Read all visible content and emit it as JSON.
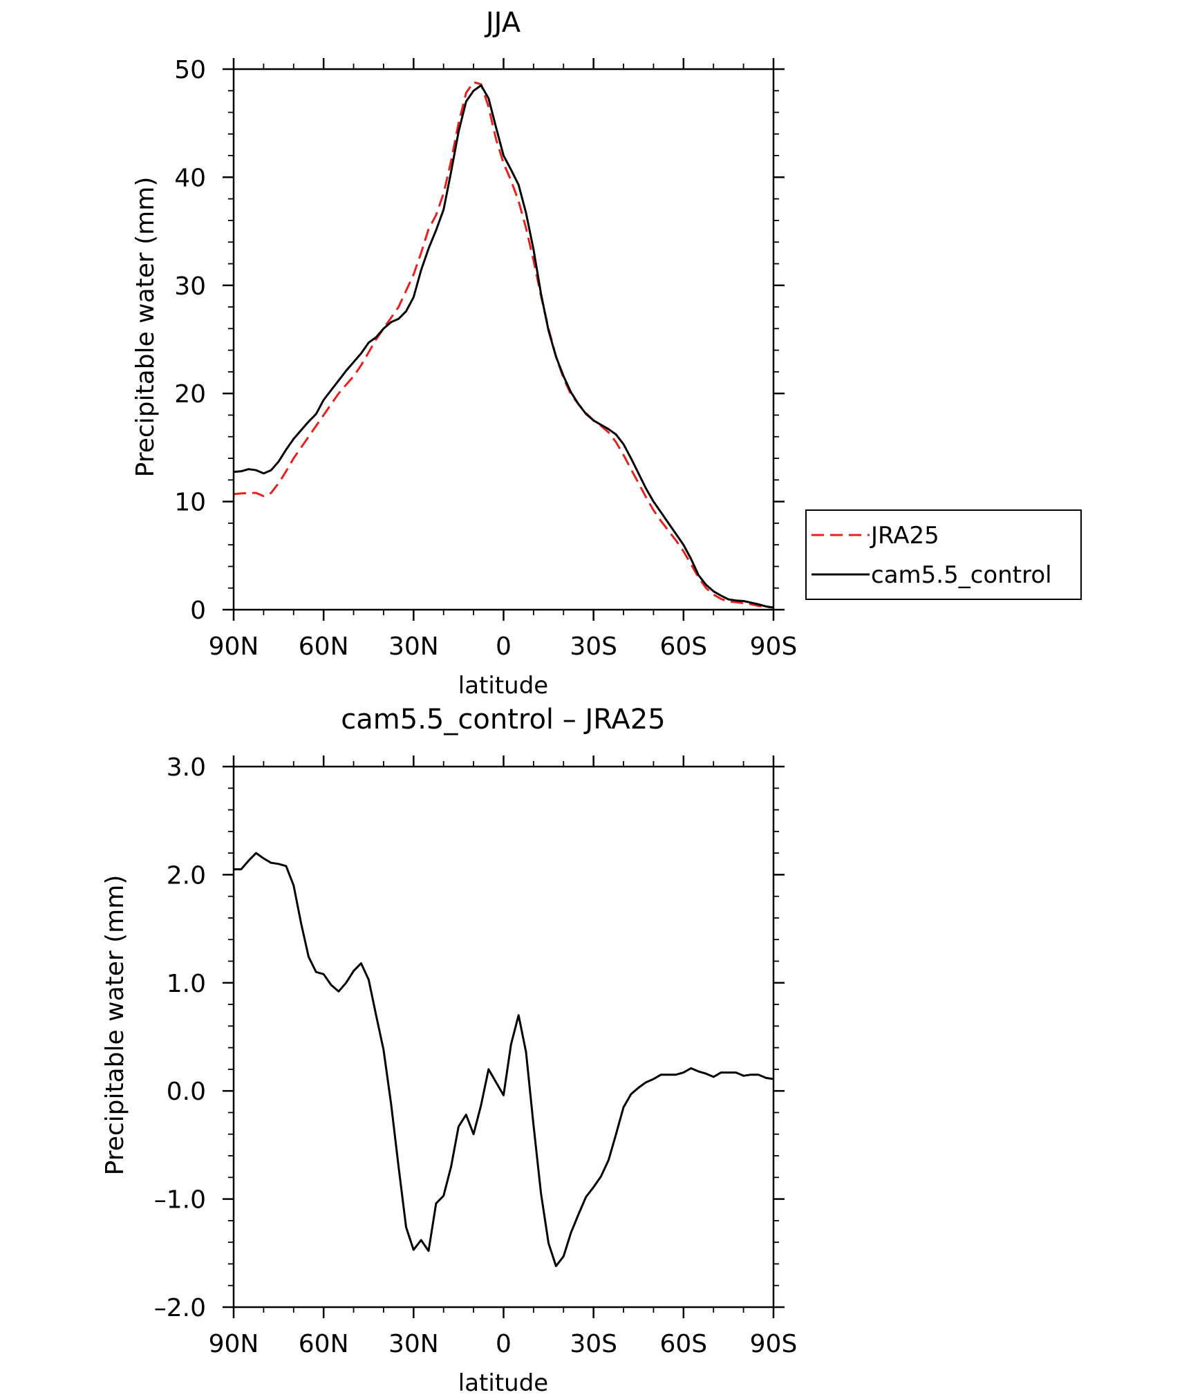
{
  "chart_data": [
    {
      "type": "line",
      "title": "JJA",
      "xlabel": "latitude",
      "ylabel": "Precipitable water (mm)",
      "xlim": [
        90,
        -90
      ],
      "ylim": [
        0,
        50
      ],
      "xtick_values": [
        90,
        60,
        30,
        0,
        -30,
        -60,
        -90
      ],
      "xtick_labels": [
        "90N",
        "60N",
        "30N",
        "0",
        "30S",
        "60S",
        "90S"
      ],
      "ytick_values": [
        0,
        10,
        20,
        30,
        40,
        50
      ],
      "ytick_labels": [
        "0",
        "10",
        "20",
        "30",
        "40",
        "50"
      ],
      "legend_position": "right",
      "series": [
        {
          "name": "JRA25",
          "color": "#e8201d",
          "dash": "dashed",
          "x": [
            90,
            87.5,
            85,
            82.5,
            80,
            77.5,
            75,
            72.5,
            70,
            67.5,
            65,
            62.5,
            60,
            57.5,
            55,
            52.5,
            50,
            47.5,
            45,
            42.5,
            40,
            37.5,
            35,
            32.5,
            30,
            27.5,
            25,
            22.5,
            20,
            17.5,
            15,
            12.5,
            10,
            7.5,
            5,
            2.5,
            0,
            -2.5,
            -5,
            -7.5,
            -10,
            -12.5,
            -15,
            -17.5,
            -20,
            -22.5,
            -25,
            -27.5,
            -30,
            -32.5,
            -35,
            -37.5,
            -40,
            -42.5,
            -45,
            -47.5,
            -50,
            -52.5,
            -55,
            -57.5,
            -60,
            -62.5,
            -65,
            -67.5,
            -70,
            -72.5,
            -75,
            -77.5,
            -80,
            -82.5,
            -85,
            -87.5,
            -90
          ],
          "y": [
            10.7,
            10.75,
            10.8,
            10.8,
            10.5,
            10.8,
            11.7,
            12.8,
            14.0,
            15.0,
            16.0,
            17.0,
            18.0,
            19.0,
            20.0,
            20.8,
            21.6,
            22.6,
            23.8,
            25.0,
            26.0,
            27.0,
            28.0,
            29.5,
            31.0,
            33.0,
            35.2,
            36.5,
            38.5,
            41.5,
            45.0,
            47.8,
            48.8,
            48.6,
            46.5,
            43.5,
            41.3,
            39.7,
            37.8,
            35.3,
            32.3,
            29.0,
            26.0,
            23.4,
            21.4,
            19.9,
            19.0,
            18.2,
            17.5,
            17.0,
            16.4,
            15.5,
            14.3,
            13.0,
            11.7,
            10.4,
            9.2,
            8.2,
            7.3,
            6.4,
            5.4,
            4.2,
            3.0,
            2.0,
            1.4,
            1.0,
            0.75,
            0.7,
            0.6,
            0.5,
            0.35,
            0.25,
            0.2
          ]
        },
        {
          "name": "cam5.5_control",
          "color": "#000000",
          "dash": "solid",
          "x": [
            90,
            87.5,
            85,
            82.5,
            80,
            77.5,
            75,
            72.5,
            70,
            67.5,
            65,
            62.5,
            60,
            57.5,
            55,
            52.5,
            50,
            47.5,
            45,
            42.5,
            40,
            37.5,
            35,
            32.5,
            30,
            27.5,
            25,
            22.5,
            20,
            17.5,
            15,
            12.5,
            10,
            7.5,
            5,
            2.5,
            0,
            -2.5,
            -5,
            -7.5,
            -10,
            -12.5,
            -15,
            -17.5,
            -20,
            -22.5,
            -25,
            -27.5,
            -30,
            -32.5,
            -35,
            -37.5,
            -40,
            -42.5,
            -45,
            -47.5,
            -50,
            -52.5,
            -55,
            -57.5,
            -60,
            -62.5,
            -65,
            -67.5,
            -70,
            -72.5,
            -75,
            -77.5,
            -80,
            -82.5,
            -85,
            -87.5,
            -90
          ],
          "y": [
            12.75,
            12.8,
            13.0,
            12.9,
            12.6,
            12.9,
            13.7,
            14.8,
            15.8,
            16.6,
            17.4,
            18.1,
            19.4,
            20.3,
            21.2,
            22.1,
            22.9,
            23.7,
            24.7,
            25.2,
            26.0,
            26.6,
            26.9,
            27.6,
            28.9,
            31.4,
            33.4,
            35.1,
            37.0,
            40.5,
            44.2,
            47.0,
            48.0,
            48.5,
            47.3,
            44.6,
            42.0,
            40.7,
            39.3,
            36.7,
            33.3,
            29.2,
            25.8,
            23.4,
            21.6,
            20.1,
            19.0,
            18.1,
            17.5,
            17.1,
            16.7,
            16.2,
            15.3,
            14.0,
            12.6,
            11.2,
            10.0,
            9.0,
            8.0,
            7.0,
            6.0,
            4.7,
            3.2,
            2.3,
            1.7,
            1.3,
            0.95,
            0.85,
            0.8,
            0.65,
            0.5,
            0.3,
            0.2
          ]
        }
      ]
    },
    {
      "type": "line",
      "title": "cam5.5_control – JRA25",
      "xlabel": "latitude",
      "ylabel": "Precipitable water (mm)",
      "xlim": [
        90,
        -90
      ],
      "ylim": [
        -2.0,
        3.0
      ],
      "xtick_values": [
        90,
        60,
        30,
        0,
        -30,
        -60,
        -90
      ],
      "xtick_labels": [
        "90N",
        "60N",
        "30N",
        "0",
        "30S",
        "60S",
        "90S"
      ],
      "ytick_values": [
        -2,
        -1,
        0,
        1,
        2,
        3
      ],
      "ytick_labels": [
        "–2.0",
        "–1.0",
        "0.0",
        "1.0",
        "2.0",
        "3.0"
      ],
      "series": [
        {
          "color": "#000000",
          "dash": "solid",
          "x": [
            90,
            87.5,
            85,
            82.5,
            80,
            77.5,
            75,
            72.5,
            70,
            67.5,
            65,
            62.5,
            60,
            57.5,
            55,
            52.5,
            50,
            47.5,
            45,
            42.5,
            40,
            37.5,
            35,
            32.5,
            30,
            27.5,
            25,
            22.5,
            20,
            17.5,
            15,
            12.5,
            10,
            7.5,
            5,
            2.5,
            0,
            -2.5,
            -5,
            -7.5,
            -10,
            -12.5,
            -15,
            -17.5,
            -20,
            -22.5,
            -25,
            -27.5,
            -30,
            -32.5,
            -35,
            -37.5,
            -40,
            -42.5,
            -45,
            -47.5,
            -50,
            -52.5,
            -55,
            -57.5,
            -60,
            -62.5,
            -65,
            -67.5,
            -70,
            -72.5,
            -75,
            -77.5,
            -80,
            -82.5,
            -85,
            -87.5,
            -90
          ],
          "y": [
            2.05,
            2.05,
            2.13,
            2.2,
            2.15,
            2.11,
            2.1,
            2.08,
            1.9,
            1.55,
            1.24,
            1.1,
            1.08,
            0.98,
            0.92,
            1.0,
            1.11,
            1.18,
            1.03,
            0.7,
            0.38,
            -0.12,
            -0.7,
            -1.26,
            -1.47,
            -1.38,
            -1.48,
            -1.04,
            -0.97,
            -0.7,
            -0.33,
            -0.22,
            -0.4,
            -0.13,
            0.2,
            0.08,
            -0.04,
            0.43,
            0.7,
            0.36,
            -0.32,
            -0.95,
            -1.41,
            -1.62,
            -1.53,
            -1.31,
            -1.14,
            -0.98,
            -0.89,
            -0.79,
            -0.64,
            -0.4,
            -0.15,
            -0.03,
            0.03,
            0.08,
            0.11,
            0.15,
            0.15,
            0.15,
            0.17,
            0.21,
            0.18,
            0.16,
            0.13,
            0.17,
            0.17,
            0.17,
            0.14,
            0.15,
            0.15,
            0.12,
            0.11
          ]
        }
      ]
    }
  ]
}
